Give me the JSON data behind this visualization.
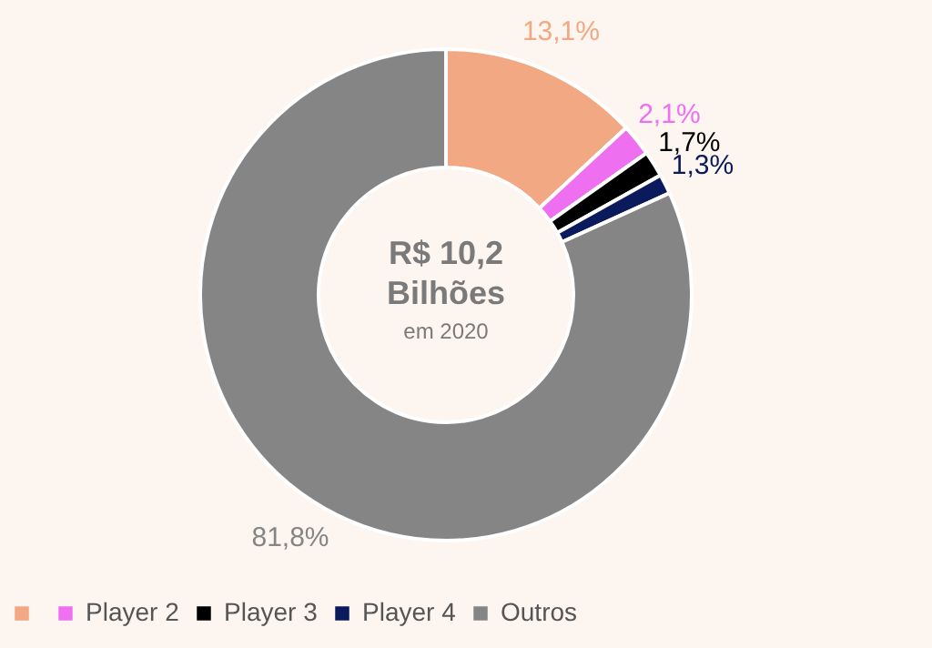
{
  "chart_data": {
    "type": "donut",
    "categories": [
      null,
      "Player 2",
      "Player 3",
      "Player 4",
      "Outros"
    ],
    "values": [
      13.1,
      2.1,
      1.7,
      1.3,
      81.8
    ],
    "colors": [
      "#f2a882",
      "#ee6ff0",
      "#000000",
      "#0a1a5c",
      "#858585"
    ],
    "value_labels": [
      "13,1%",
      "2,1%",
      "1,7%",
      "1,3%",
      "81,8%"
    ],
    "annotations": [
      "R$ 10,2",
      "Bilhões",
      "em 2020"
    ],
    "legend": "bottom"
  }
}
